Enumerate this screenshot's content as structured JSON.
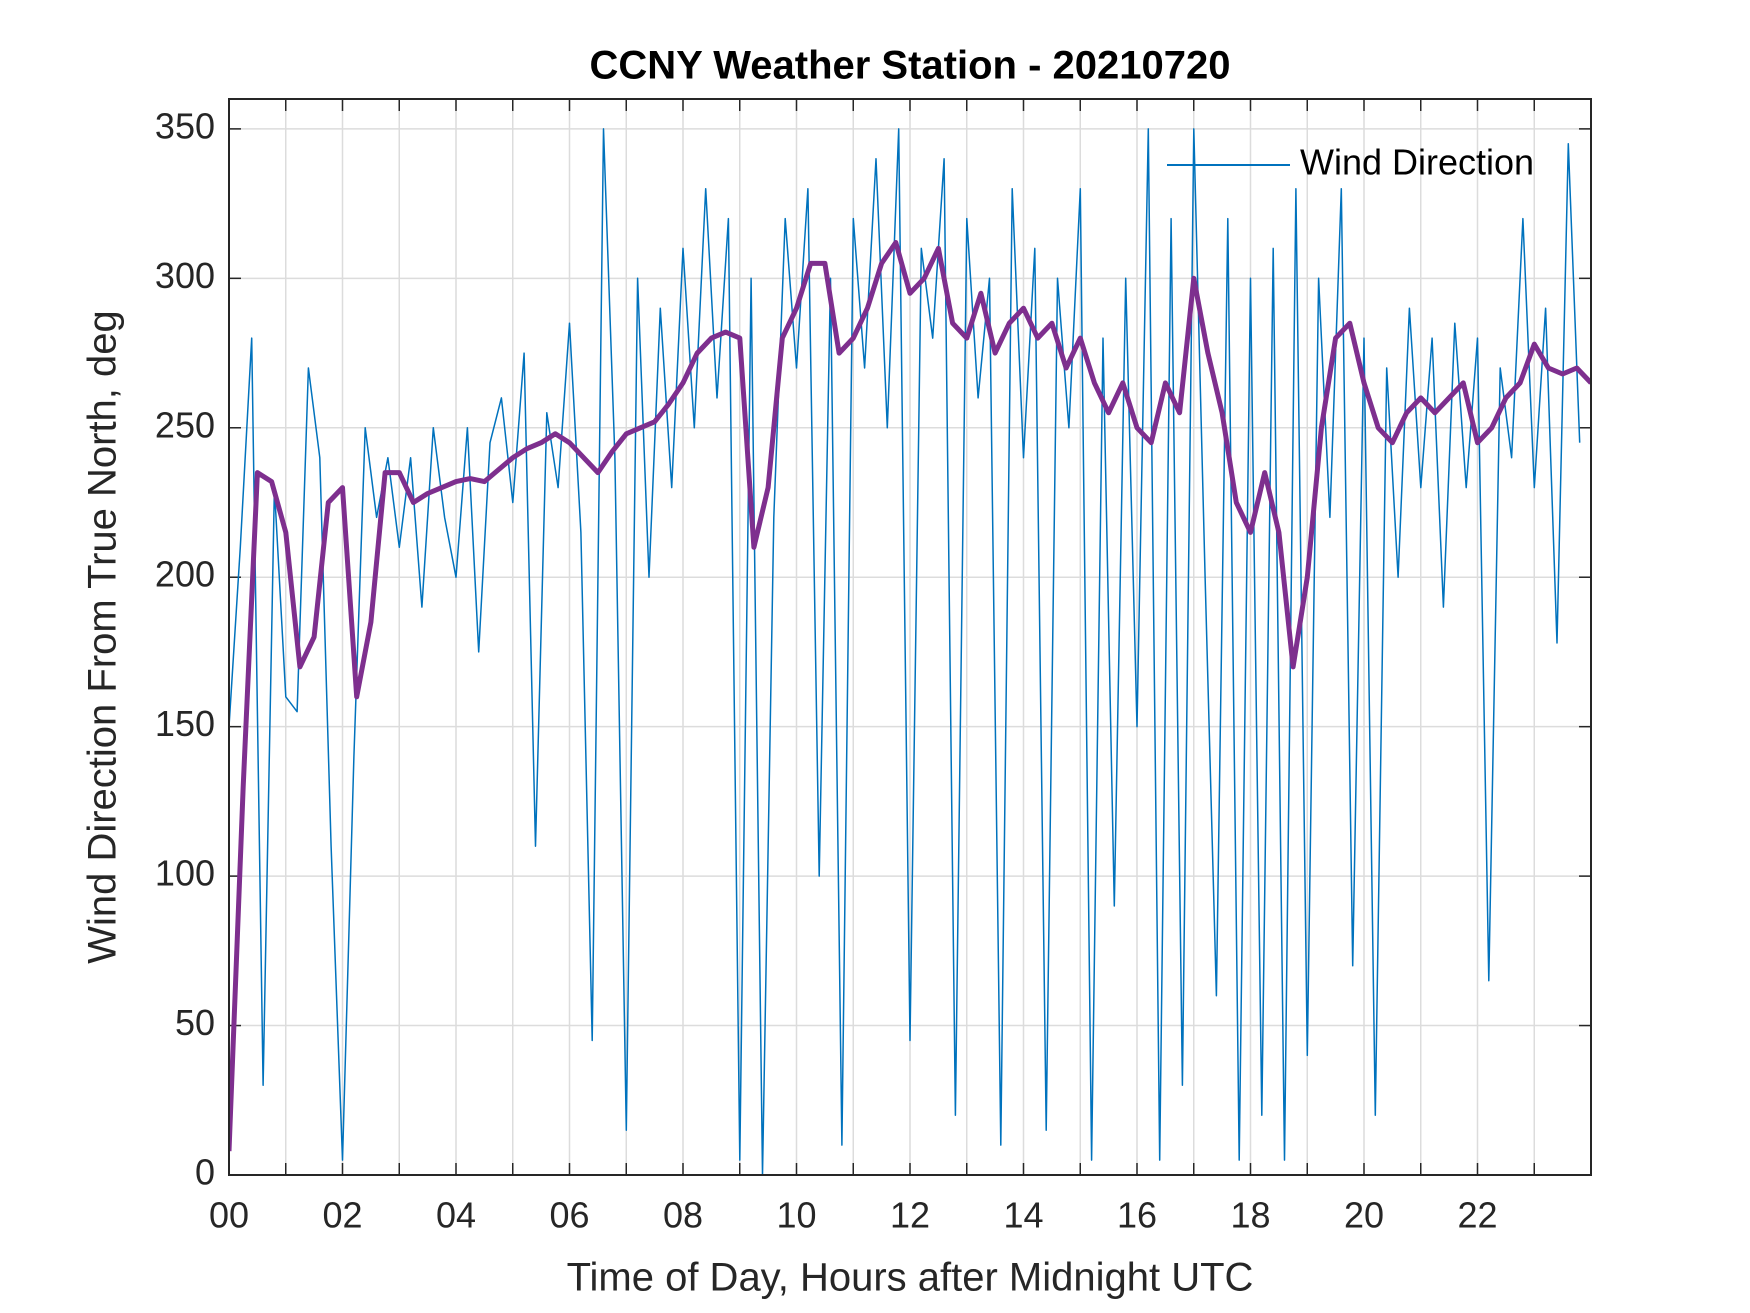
{
  "chart_data": {
    "type": "line",
    "title": "CCNY Weather Station - 20210720",
    "xlabel": "Time of Day, Hours after Midnight UTC",
    "ylabel": "Wind Direction From True North, deg",
    "xlim": [
      0,
      24
    ],
    "ylim": [
      0,
      360
    ],
    "xticks": [
      {
        "value": 0,
        "label": "00"
      },
      {
        "value": 2,
        "label": "02"
      },
      {
        "value": 4,
        "label": "04"
      },
      {
        "value": 6,
        "label": "06"
      },
      {
        "value": 8,
        "label": "08"
      },
      {
        "value": 10,
        "label": "10"
      },
      {
        "value": 12,
        "label": "12"
      },
      {
        "value": 14,
        "label": "14"
      },
      {
        "value": 16,
        "label": "16"
      },
      {
        "value": 18,
        "label": "18"
      },
      {
        "value": 20,
        "label": "20"
      },
      {
        "value": 22,
        "label": "22"
      }
    ],
    "xminor_ticks": [
      1,
      3,
      5,
      7,
      9,
      11,
      13,
      15,
      17,
      19,
      21,
      23
    ],
    "yticks": [
      0,
      50,
      100,
      150,
      200,
      250,
      300,
      350
    ],
    "grid": true,
    "legend": "upper right",
    "series": [
      {
        "name": "Wind Direction",
        "color": "#0072BD",
        "width": 1.5,
        "x": [
          0,
          0.2,
          0.4,
          0.6,
          0.8,
          1,
          1.2,
          1.4,
          1.6,
          1.8,
          2,
          2.2,
          2.4,
          2.6,
          2.8,
          3,
          3.2,
          3.4,
          3.6,
          3.8,
          4,
          4.2,
          4.4,
          4.6,
          4.8,
          5,
          5.2,
          5.4,
          5.6,
          5.8,
          6,
          6.2,
          6.4,
          6.6,
          6.8,
          7,
          7.2,
          7.4,
          7.6,
          7.8,
          8,
          8.2,
          8.4,
          8.6,
          8.8,
          9,
          9.2,
          9.4,
          9.6,
          9.8,
          10,
          10.2,
          10.4,
          10.6,
          10.8,
          11,
          11.2,
          11.4,
          11.6,
          11.8,
          12,
          12.2,
          12.4,
          12.6,
          12.8,
          13,
          13.2,
          13.4,
          13.6,
          13.8,
          14,
          14.2,
          14.4,
          14.6,
          14.8,
          15,
          15.2,
          15.4,
          15.6,
          15.8,
          16,
          16.2,
          16.4,
          16.6,
          16.8,
          17,
          17.2,
          17.4,
          17.6,
          17.8,
          18,
          18.2,
          18.4,
          18.6,
          18.8,
          19,
          19.2,
          19.4,
          19.6,
          19.8,
          20,
          20.2,
          20.4,
          20.6,
          20.8,
          21,
          21.2,
          21.4,
          21.6,
          21.8,
          22,
          22.2,
          22.4,
          22.6,
          22.8,
          23,
          23.2,
          23.4,
          23.6,
          23.8
        ],
        "values": [
          150,
          210,
          280,
          30,
          230,
          160,
          155,
          270,
          240,
          110,
          5,
          140,
          250,
          220,
          240,
          210,
          240,
          190,
          250,
          220,
          200,
          250,
          175,
          245,
          260,
          225,
          275,
          110,
          255,
          230,
          285,
          215,
          45,
          350,
          240,
          15,
          300,
          200,
          290,
          230,
          310,
          250,
          330,
          260,
          320,
          5,
          300,
          0,
          220,
          320,
          270,
          330,
          100,
          300,
          10,
          320,
          270,
          340,
          250,
          350,
          45,
          310,
          280,
          340,
          20,
          320,
          260,
          300,
          10,
          330,
          240,
          310,
          15,
          300,
          250,
          330,
          5,
          280,
          90,
          300,
          150,
          350,
          5,
          320,
          30,
          350,
          200,
          60,
          320,
          5,
          300,
          20,
          310,
          5,
          330,
          40,
          300,
          220,
          330,
          70,
          280,
          20,
          270,
          200,
          290,
          230,
          280,
          190,
          285,
          230,
          280,
          65,
          270,
          240,
          320,
          230,
          290,
          178,
          345,
          245
        ]
      },
      {
        "color": "#7E2F8E",
        "width": 5,
        "x": [
          0,
          0.25,
          0.5,
          0.75,
          1,
          1.25,
          1.5,
          1.75,
          2,
          2.25,
          2.5,
          2.75,
          3,
          3.25,
          3.5,
          3.75,
          4,
          4.25,
          4.5,
          4.75,
          5,
          5.25,
          5.5,
          5.75,
          6,
          6.25,
          6.5,
          6.75,
          7,
          7.25,
          7.5,
          7.75,
          8,
          8.25,
          8.5,
          8.75,
          9,
          9.25,
          9.5,
          9.75,
          10,
          10.25,
          10.5,
          10.75,
          11,
          11.25,
          11.5,
          11.75,
          12,
          12.25,
          12.5,
          12.75,
          13,
          13.25,
          13.5,
          13.75,
          14,
          14.25,
          14.5,
          14.75,
          15,
          15.25,
          15.5,
          15.75,
          16,
          16.25,
          16.5,
          16.75,
          17,
          17.25,
          17.5,
          17.75,
          18,
          18.25,
          18.5,
          18.75,
          19,
          19.25,
          19.5,
          19.75,
          20,
          20.25,
          20.5,
          20.75,
          21,
          21.25,
          21.5,
          21.75,
          22,
          22.25,
          22.5,
          22.75,
          23,
          23.25,
          23.5,
          23.75,
          24
        ],
        "values": [
          8,
          130,
          235,
          232,
          215,
          170,
          180,
          225,
          230,
          160,
          185,
          235,
          235,
          225,
          228,
          230,
          232,
          233,
          232,
          236,
          240,
          243,
          245,
          248,
          245,
          240,
          235,
          242,
          248,
          250,
          252,
          258,
          265,
          275,
          280,
          282,
          280,
          210,
          230,
          280,
          290,
          305,
          305,
          275,
          280,
          290,
          305,
          312,
          295,
          300,
          310,
          285,
          280,
          295,
          275,
          285,
          290,
          280,
          285,
          270,
          280,
          265,
          255,
          265,
          250,
          245,
          265,
          255,
          300,
          275,
          255,
          225,
          215,
          235,
          215,
          170,
          200,
          250,
          280,
          285,
          265,
          250,
          245,
          255,
          260,
          255,
          260,
          265,
          245,
          250,
          260,
          265,
          278,
          270,
          268,
          270,
          265
        ]
      }
    ]
  }
}
